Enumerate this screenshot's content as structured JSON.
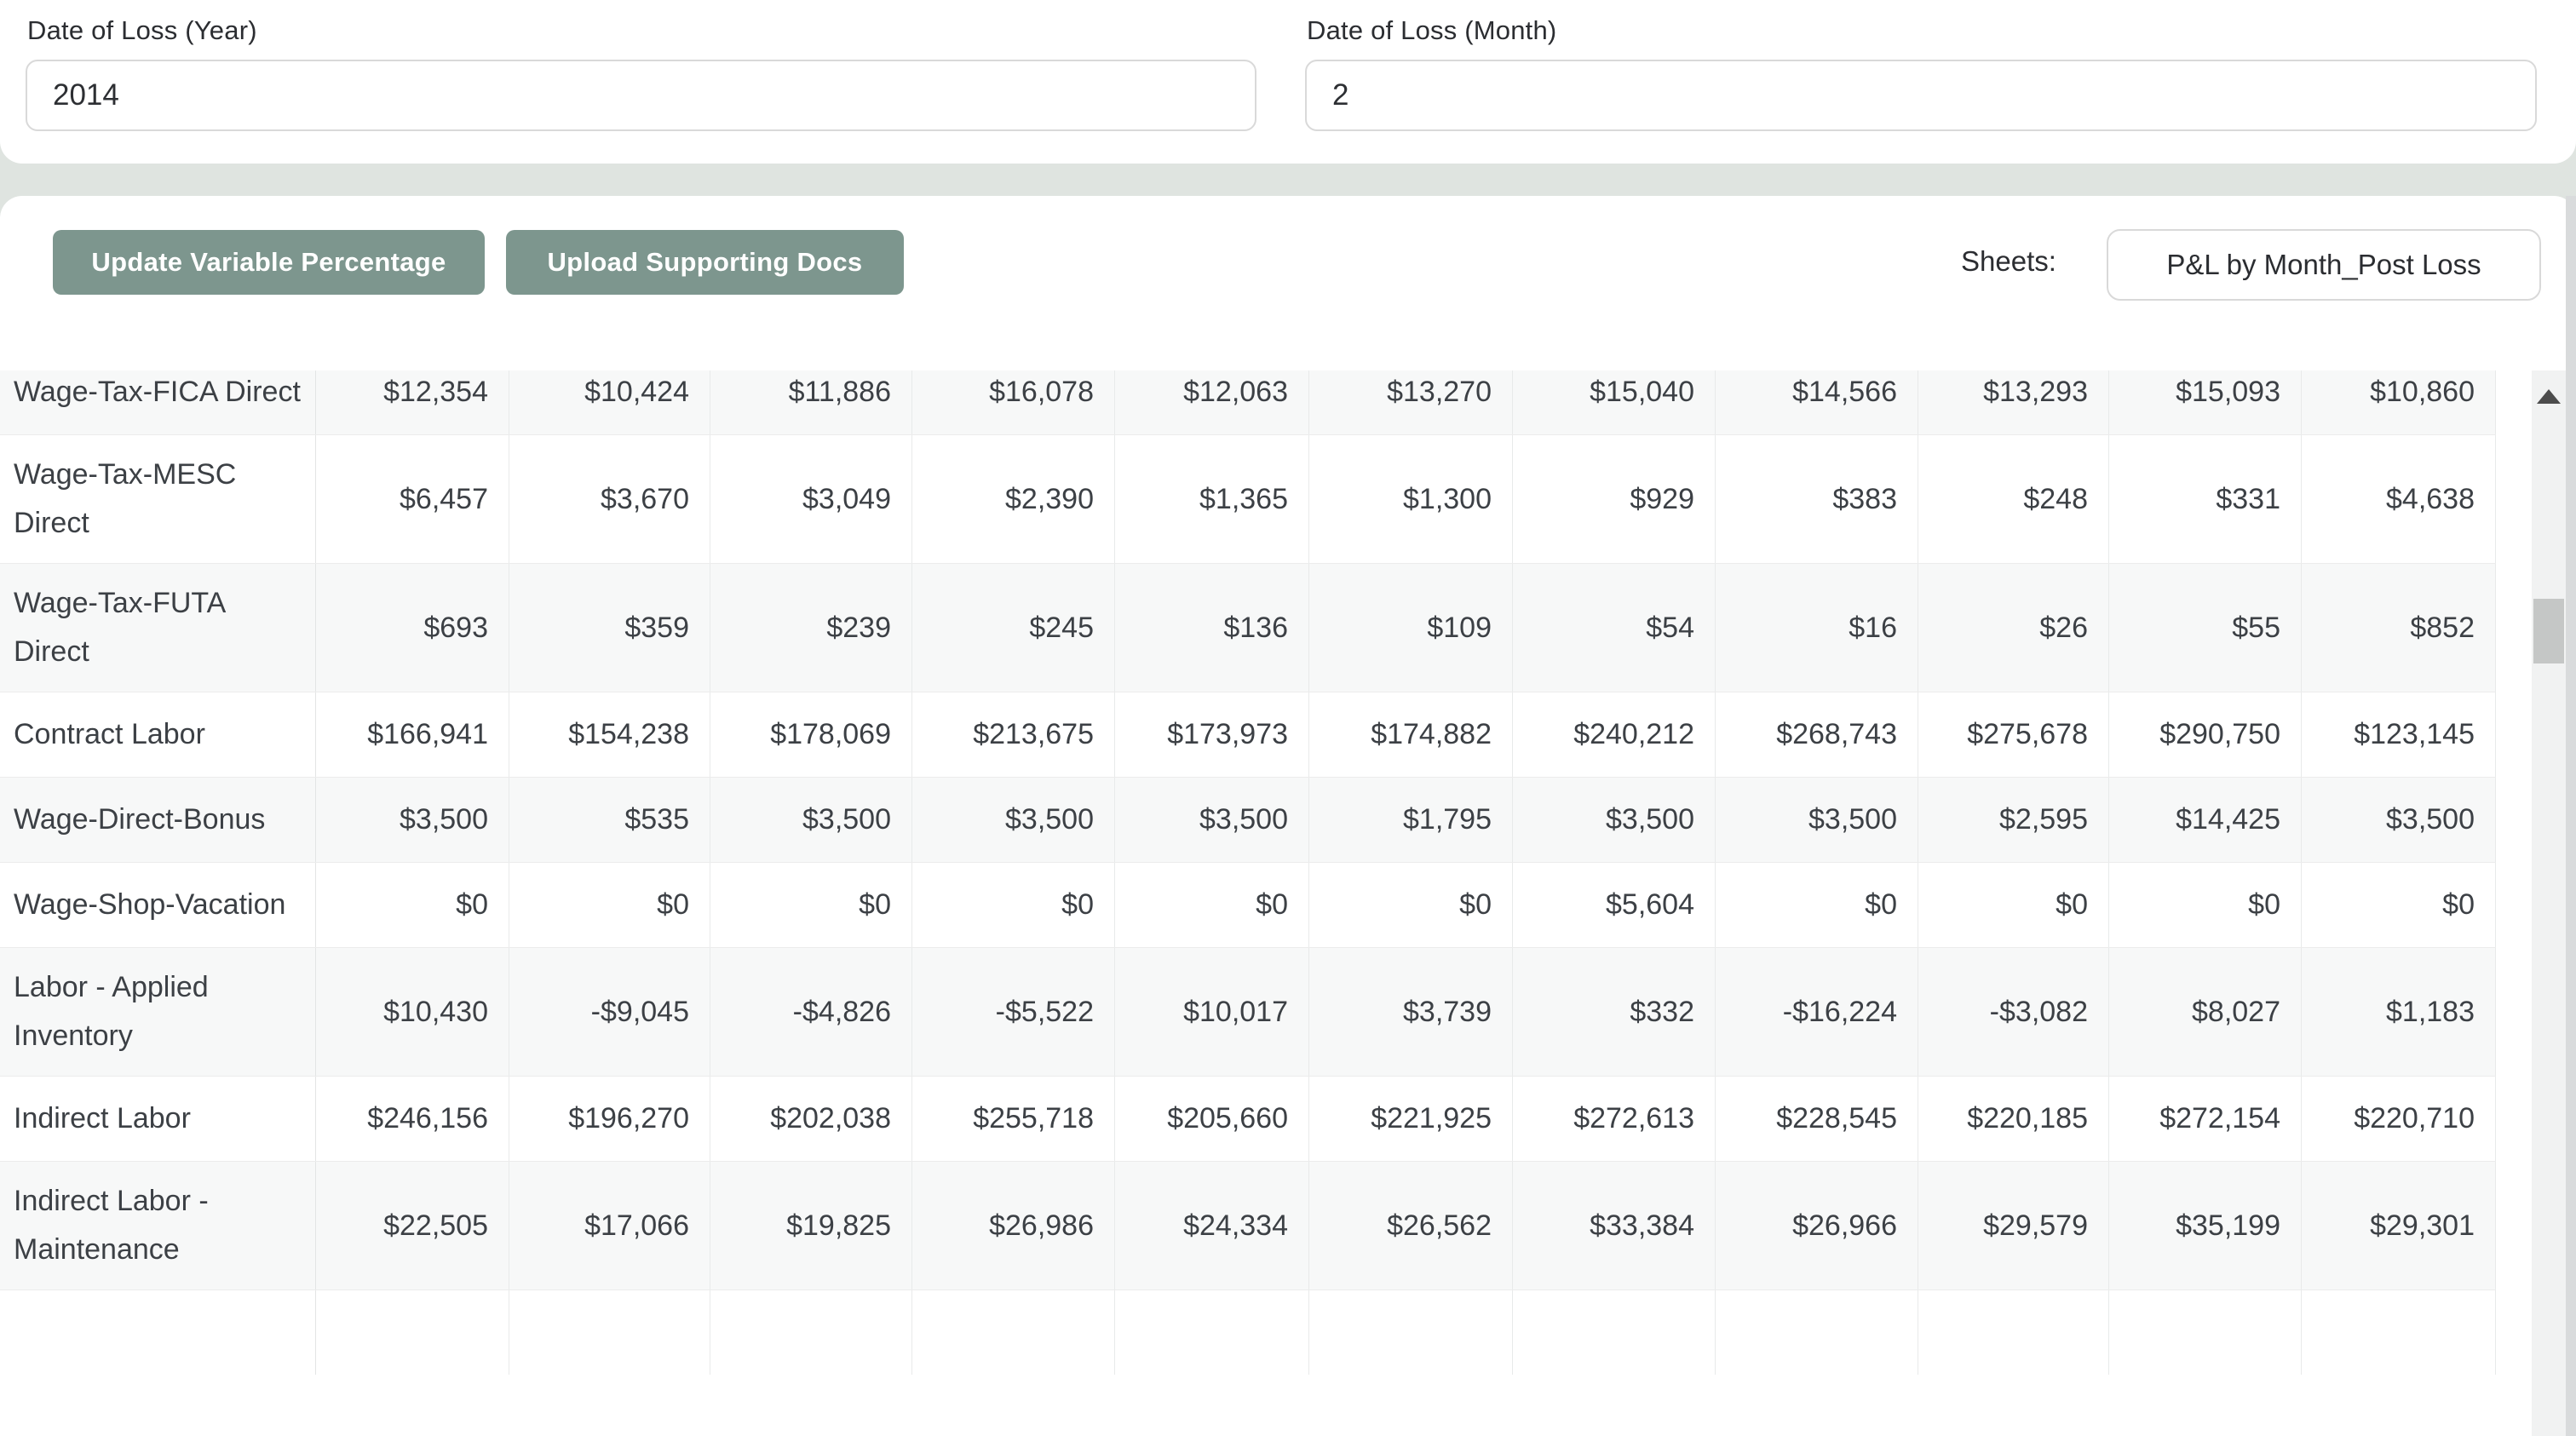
{
  "theme": {
    "accent_button": "#7d968e",
    "page_background": "#dfe4e0",
    "row_alt_background": "#f7f8f8"
  },
  "form": {
    "year_label": "Date of Loss (Year)",
    "year_value": "2014",
    "month_label": "Date of Loss (Month)",
    "month_value": "2"
  },
  "toolbar": {
    "update_button": "Update Variable Percentage",
    "upload_button": "Upload Supporting Docs",
    "sheets_label": "Sheets:",
    "sheet_selected": "P&L by Month_Post Loss"
  },
  "table": {
    "rows": [
      {
        "label": "Wage-Tax-FICA Direct",
        "values": [
          "$12,354",
          "$10,424",
          "$11,886",
          "$16,078",
          "$12,063",
          "$13,270",
          "$15,040",
          "$14,566",
          "$13,293",
          "$15,093",
          "$10,860"
        ]
      },
      {
        "label": "Wage-Tax-MESC Direct",
        "values": [
          "$6,457",
          "$3,670",
          "$3,049",
          "$2,390",
          "$1,365",
          "$1,300",
          "$929",
          "$383",
          "$248",
          "$331",
          "$4,638"
        ]
      },
      {
        "label": "Wage-Tax-FUTA Direct",
        "values": [
          "$693",
          "$359",
          "$239",
          "$245",
          "$136",
          "$109",
          "$54",
          "$16",
          "$26",
          "$55",
          "$852"
        ]
      },
      {
        "label": "Contract Labor",
        "values": [
          "$166,941",
          "$154,238",
          "$178,069",
          "$213,675",
          "$173,973",
          "$174,882",
          "$240,212",
          "$268,743",
          "$275,678",
          "$290,750",
          "$123,145"
        ]
      },
      {
        "label": "Wage-Direct-Bonus",
        "values": [
          "$3,500",
          "$535",
          "$3,500",
          "$3,500",
          "$3,500",
          "$1,795",
          "$3,500",
          "$3,500",
          "$2,595",
          "$14,425",
          "$3,500"
        ]
      },
      {
        "label": "Wage-Shop-Vacation",
        "values": [
          "$0",
          "$0",
          "$0",
          "$0",
          "$0",
          "$0",
          "$5,604",
          "$0",
          "$0",
          "$0",
          "$0"
        ]
      },
      {
        "label": "Labor - Applied Inventory",
        "values": [
          "$10,430",
          "-$9,045",
          "-$4,826",
          "-$5,522",
          "$10,017",
          "$3,739",
          "$332",
          "-$16,224",
          "-$3,082",
          "$8,027",
          "$1,183"
        ]
      },
      {
        "label": "Indirect Labor",
        "values": [
          "$246,156",
          "$196,270",
          "$202,038",
          "$255,718",
          "$205,660",
          "$221,925",
          "$272,613",
          "$228,545",
          "$220,185",
          "$272,154",
          "$220,710"
        ]
      },
      {
        "label": "Indirect Labor - Maintenance",
        "values": [
          "$22,505",
          "$17,066",
          "$19,825",
          "$26,986",
          "$24,334",
          "$26,562",
          "$33,384",
          "$26,966",
          "$29,579",
          "$35,199",
          "$29,301"
        ]
      }
    ]
  }
}
